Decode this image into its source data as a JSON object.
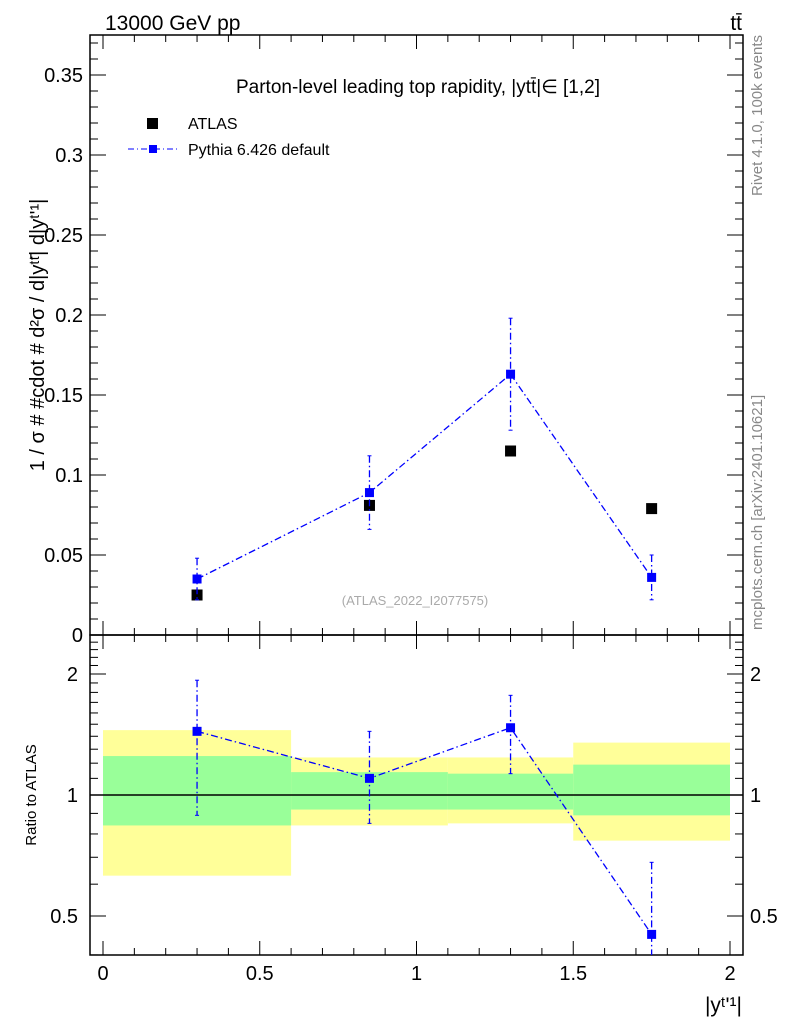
{
  "header": {
    "left": "13000 GeV pp",
    "right": "tt̄"
  },
  "side": {
    "rivet": "Rivet 4.1.0,  100k events",
    "mcplots": "mcplots.cern.ch [arXiv:2401.10621]"
  },
  "watermark": "(ATLAS_2022_I2077575)",
  "chart_data": [
    {
      "type": "scatter",
      "title": "Parton-level leading top rapidity, |y^{tt̄}| ∈ [1,2]",
      "title_display": "Parton-level leading top rapidity, |ytt̄|∈ [1,2]",
      "ylabel": "1 / σ # #cdot # d²σ / d|yᵗᵗ̄| d|yᵗ'¹|",
      "ylim": [
        0,
        0.375
      ],
      "xlim": [
        -0.05,
        2.05
      ],
      "yticks": [
        0,
        0.05,
        0.1,
        0.15,
        0.2,
        0.25,
        0.3,
        0.35
      ],
      "ytick_labels": [
        "0",
        "0.05",
        "0.1",
        "0.15",
        "0.2",
        "0.25",
        "0.3",
        "0.35"
      ],
      "legend": {
        "position": "top-left",
        "entries": [
          "ATLAS",
          "Pythia 6.426 default"
        ]
      },
      "series": [
        {
          "name": "ATLAS",
          "color": "#000000",
          "x": [
            0.3,
            0.85,
            1.3,
            1.75
          ],
          "y": [
            0.025,
            0.081,
            0.115,
            0.079
          ]
        },
        {
          "name": "Pythia 6.426 default",
          "color": "#0000ff",
          "x": [
            0.3,
            0.85,
            1.3,
            1.75
          ],
          "y": [
            0.035,
            0.089,
            0.163,
            0.036
          ],
          "yerr_low": [
            0.022,
            0.066,
            0.128,
            0.022
          ],
          "yerr_high": [
            0.048,
            0.112,
            0.198,
            0.05
          ]
        }
      ]
    },
    {
      "type": "scatter",
      "ylabel": "Ratio to ATLAS",
      "xlabel": "|yᵗ'¹|",
      "yscale": "log",
      "ylim": [
        0.4,
        2.5
      ],
      "xlim": [
        -0.05,
        2.05
      ],
      "xticks": [
        0,
        0.5,
        1,
        1.5,
        2
      ],
      "xtick_labels": [
        "0",
        "0.5",
        "1",
        "1.5",
        "2"
      ],
      "yticks": [
        0.5,
        1,
        2
      ],
      "ytick_labels": [
        "0.5",
        "1",
        "2"
      ],
      "bands": {
        "bins": [
          [
            0,
            0.6
          ],
          [
            0.6,
            1.1
          ],
          [
            1.1,
            1.5
          ],
          [
            1.5,
            2.0
          ]
        ],
        "yellow": {
          "color": "#ffff99",
          "low": [
            0.63,
            0.84,
            0.85,
            0.77
          ],
          "high": [
            1.45,
            1.24,
            1.24,
            1.35
          ]
        },
        "green": {
          "color": "#99ff99",
          "low": [
            0.84,
            0.92,
            0.92,
            0.89
          ],
          "high": [
            1.25,
            1.14,
            1.13,
            1.19
          ]
        }
      },
      "series": [
        {
          "name": "Pythia 6.426 default",
          "color": "#0000ff",
          "x": [
            0.3,
            0.85,
            1.3,
            1.75
          ],
          "y": [
            1.44,
            1.1,
            1.47,
            0.45
          ],
          "yerr_low": [
            0.89,
            0.85,
            1.13,
            0.38
          ],
          "yerr_high": [
            1.93,
            1.44,
            1.77,
            0.68
          ]
        }
      ]
    }
  ]
}
